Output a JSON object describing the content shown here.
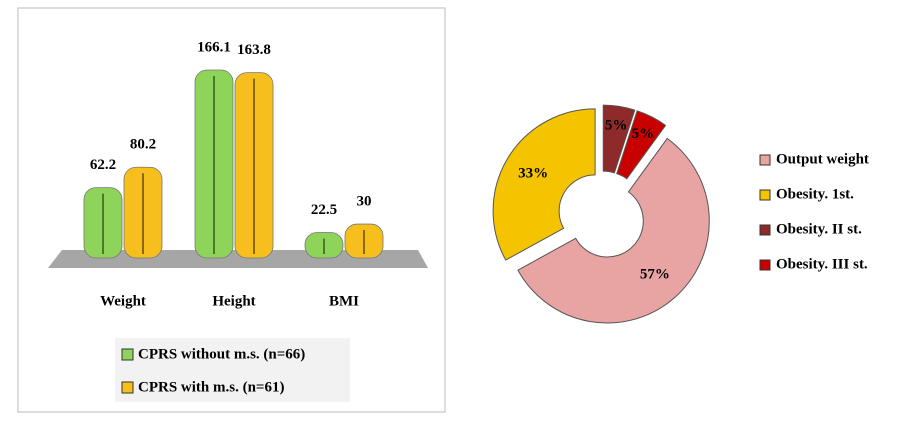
{
  "chart_data": [
    {
      "type": "bar",
      "categories": [
        "Weight",
        "Height",
        "BMI"
      ],
      "series": [
        {
          "name": "CPRS without m.s. (n=66)",
          "color": "#8fd45a",
          "values": [
            62.2,
            166.1,
            22.5
          ]
        },
        {
          "name": "CPRS with m.s. (n=61)",
          "color": "#f7bf1e",
          "values": [
            80.2,
            163.8,
            30
          ]
        }
      ]
    },
    {
      "type": "pie",
      "categories": [
        "Output weight",
        "Obesity. 1st.",
        "Obesity. II st.",
        "Obesity. III st."
      ],
      "values": [
        57,
        33,
        5,
        5
      ],
      "value_labels": [
        "57%",
        "33%",
        "5%",
        "5%"
      ],
      "colors": [
        "#e8a3a3",
        "#f5c400",
        "#8e2a2a",
        "#c80000"
      ]
    }
  ]
}
